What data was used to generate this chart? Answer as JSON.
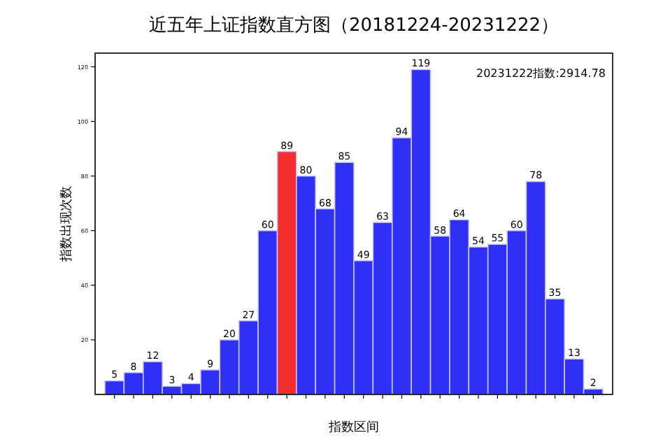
{
  "chart_data": {
    "type": "bar",
    "title": "近五年上证指数直方图（20181224-20231222）",
    "xlabel": "指数区间",
    "ylabel": "指数出现次数",
    "annotations": [
      "20231222指数:2914.78"
    ],
    "categories": [
      null,
      null,
      null,
      null,
      null,
      null,
      null,
      null,
      null,
      null,
      null,
      null,
      null,
      null,
      null,
      null,
      null,
      null,
      null,
      null,
      null,
      null,
      null,
      null,
      null,
      null
    ],
    "values": [
      5,
      8,
      12,
      3,
      4,
      9,
      20,
      27,
      60,
      89,
      80,
      68,
      85,
      49,
      63,
      94,
      119,
      58,
      64,
      54,
      55,
      60,
      78,
      35,
      13,
      2
    ],
    "colors": [
      "#2f2ff5",
      "#2f2ff5",
      "#2f2ff5",
      "#2f2ff5",
      "#2f2ff5",
      "#2f2ff5",
      "#2f2ff5",
      "#2f2ff5",
      "#2f2ff5",
      "#f52f2f",
      "#2f2ff5",
      "#2f2ff5",
      "#2f2ff5",
      "#2f2ff5",
      "#2f2ff5",
      "#2f2ff5",
      "#2f2ff5",
      "#2f2ff5",
      "#2f2ff5",
      "#2f2ff5",
      "#2f2ff5",
      "#2f2ff5",
      "#2f2ff5",
      "#2f2ff5",
      "#2f2ff5",
      "#2f2ff5"
    ],
    "ylim": [
      0,
      125
    ],
    "yticks": [
      20,
      40,
      60,
      80,
      100,
      120
    ],
    "data_labels": true,
    "grid": false
  }
}
